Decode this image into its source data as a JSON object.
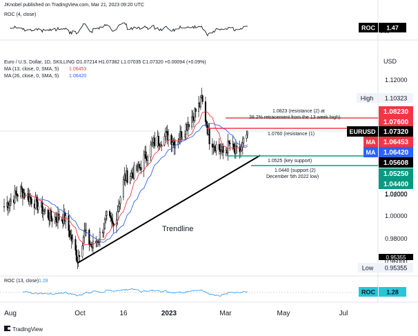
{
  "header": {
    "publisher": "JKnobel published on TradingView.com, Mar 21, 2023 09:20 UTC",
    "symbol_line": "Euro / U.S. Dollar, 1D, SKILLING  O1.07214  H1.07382  L1.07035  C1.07320  +0.00094 (+0.09%)",
    "ma13_label": "MA (13, close, 0, SMA, 5)",
    "ma13_value": "1.06453",
    "ma26_label": "MA (26, close, 0, SMA, 5)",
    "ma26_value": "1.06420",
    "currency": "USD"
  },
  "top_indicator": {
    "label": "ROC (4, close)",
    "value": "1.47",
    "badge_label": "ROC",
    "badge_value": "1.47",
    "partial_tick": "0.00"
  },
  "bottom_indicator": {
    "label": "ROC (13, close)",
    "value": "1.28",
    "badge_label": "ROC",
    "badge_value": "1.28"
  },
  "price_axis": {
    "ticks": [
      "1.12000",
      "1.04000",
      "1.02000",
      "1.00000",
      "0.98000",
      "0.96000"
    ],
    "high_label": "High",
    "high_value": "1.10323",
    "low_label": "Low",
    "low_value": "0.95355",
    "low_partial": "0.95355",
    "badges": [
      {
        "text": "1.08230",
        "bg": "#f23645",
        "fg": "#ffffff"
      },
      {
        "text": "1.07600",
        "bg": "#f23645",
        "fg": "#ffffff"
      },
      {
        "label": "EURUSD",
        "text": "1.07320",
        "bg": "#000000",
        "fg": "#ffffff"
      },
      {
        "label": "MA",
        "text": "1.06453",
        "bg": "#f23645",
        "fg": "#ffffff"
      },
      {
        "label": "MA",
        "text": "1.06420",
        "bg": "#2962ff",
        "fg": "#ffffff"
      },
      {
        "text": "1.05608",
        "bg": "#000000",
        "fg": "#ffffff"
      },
      {
        "text": "1.05250",
        "bg": "#089981",
        "fg": "#ffffff"
      },
      {
        "text": "1.04400",
        "bg": "#089981",
        "fg": "#ffffff"
      }
    ]
  },
  "time_axis": {
    "labels": [
      "Aug",
      "Oct",
      "16",
      "2023",
      "Mar",
      "May",
      "Jul"
    ]
  },
  "annotations": {
    "res2_line1": "1.0823 (resistance (2) at",
    "res2_line2": "38.2% retracement from the 13 week high)",
    "res1": "1.0760 (resistance (1)",
    "sup_key": "1.0525 (key support)",
    "sup2_line1": "1.0440 (support (2)",
    "sup2_line2": "December 5th 2022 low)",
    "trendline": "Trendline"
  },
  "footer": {
    "logo_text": "TradingView"
  },
  "colors": {
    "up": "#000000",
    "ma13": "#f23645",
    "ma26": "#2962ff",
    "support": "#089981",
    "resistance": "#f23645",
    "roc": "#2196f3"
  },
  "chart_data": {
    "type": "candlestick",
    "symbol": "EURUSD",
    "timeframe": "1D",
    "x_range": [
      "2022-07-15",
      "2023-07-31"
    ],
    "ylim": [
      0.945,
      1.135
    ],
    "approx_closes": [
      {
        "date": "2022-07-15",
        "close": 1.008
      },
      {
        "date": "2022-08-01",
        "close": 1.022
      },
      {
        "date": "2022-08-15",
        "close": 1.012
      },
      {
        "date": "2022-09-01",
        "close": 0.998
      },
      {
        "date": "2022-09-15",
        "close": 0.998
      },
      {
        "date": "2022-09-28",
        "close": 0.962
      },
      {
        "date": "2022-10-05",
        "close": 0.985
      },
      {
        "date": "2022-10-13",
        "close": 0.972
      },
      {
        "date": "2022-10-20",
        "close": 0.98
      },
      {
        "date": "2022-10-28",
        "close": 0.998
      },
      {
        "date": "2022-11-04",
        "close": 0.99
      },
      {
        "date": "2022-11-15",
        "close": 1.033
      },
      {
        "date": "2022-11-30",
        "close": 1.041
      },
      {
        "date": "2022-12-05",
        "close": 1.05
      },
      {
        "date": "2022-12-15",
        "close": 1.064
      },
      {
        "date": "2022-12-30",
        "close": 1.071
      },
      {
        "date": "2023-01-06",
        "close": 1.064
      },
      {
        "date": "2023-01-18",
        "close": 1.08
      },
      {
        "date": "2023-02-01",
        "close": 1.099
      },
      {
        "date": "2023-02-02",
        "close": 1.103
      },
      {
        "date": "2023-02-10",
        "close": 1.068
      },
      {
        "date": "2023-02-24",
        "close": 1.055
      },
      {
        "date": "2023-03-03",
        "close": 1.063
      },
      {
        "date": "2023-03-08",
        "close": 1.055
      },
      {
        "date": "2023-03-15",
        "close": 1.058
      },
      {
        "date": "2023-03-21",
        "close": 1.0732
      }
    ],
    "levels": [
      {
        "name": "resistance (2)",
        "value": 1.0823
      },
      {
        "name": "resistance (1)",
        "value": 1.076
      },
      {
        "name": "key support",
        "value": 1.0525
      },
      {
        "name": "support (2)",
        "value": 1.044
      }
    ],
    "trendline": {
      "from": {
        "date": "2022-09-28",
        "value": 0.958
      },
      "to": {
        "date": "2023-04-03",
        "value": 1.053
      }
    },
    "high": 1.10323,
    "low": 0.95355,
    "last": 1.0732,
    "ma13_last": 1.06453,
    "ma26_last": 1.0642
  }
}
